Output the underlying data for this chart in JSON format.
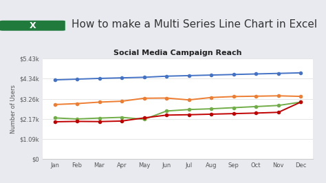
{
  "header_title": "How to make a Multi Series Line Chart in Excel",
  "chart_title": "Social Media Campaign Reach",
  "ylabel": "Number of Users",
  "months": [
    "Jan",
    "Feb",
    "Mar",
    "Apr",
    "May",
    "Jun",
    "Jul",
    "Aug",
    "Sep",
    "Oct",
    "Nov",
    "Dec"
  ],
  "series": {
    "Facebook": [
      4280,
      4320,
      4360,
      4390,
      4420,
      4480,
      4510,
      4540,
      4570,
      4600,
      4630,
      4660
    ],
    "Twitter": [
      2950,
      3000,
      3080,
      3130,
      3290,
      3300,
      3200,
      3330,
      3380,
      3400,
      3420,
      3390
    ],
    "LinkedIn": [
      2230,
      2170,
      2220,
      2260,
      2150,
      2600,
      2680,
      2720,
      2780,
      2840,
      2900,
      3080
    ],
    "Instagram": [
      2020,
      2040,
      2030,
      2060,
      2230,
      2380,
      2400,
      2430,
      2460,
      2490,
      2530,
      3080
    ]
  },
  "colors": {
    "Facebook": "#4472C4",
    "Twitter": "#ED7D31",
    "LinkedIn": "#70AD47",
    "Instagram": "#C00000"
  },
  "ylim": [
    0,
    5430
  ],
  "yticks": [
    0,
    1090,
    2170,
    3260,
    4340,
    5430
  ],
  "ytick_labels": [
    "$0",
    "$1.09k",
    "$2.17k",
    "$3.26k",
    "$4.34k",
    "$5.43k"
  ],
  "page_bg": "#E8EAF0",
  "card_bg": "#FFFFFF",
  "plot_bg": "#FFFFFF",
  "title_fontsize": 8,
  "header_fontsize": 11,
  "label_fontsize": 6,
  "tick_fontsize": 6,
  "legend_fontsize": 6.5,
  "marker": "o",
  "marker_size": 4,
  "line_width": 1.4
}
